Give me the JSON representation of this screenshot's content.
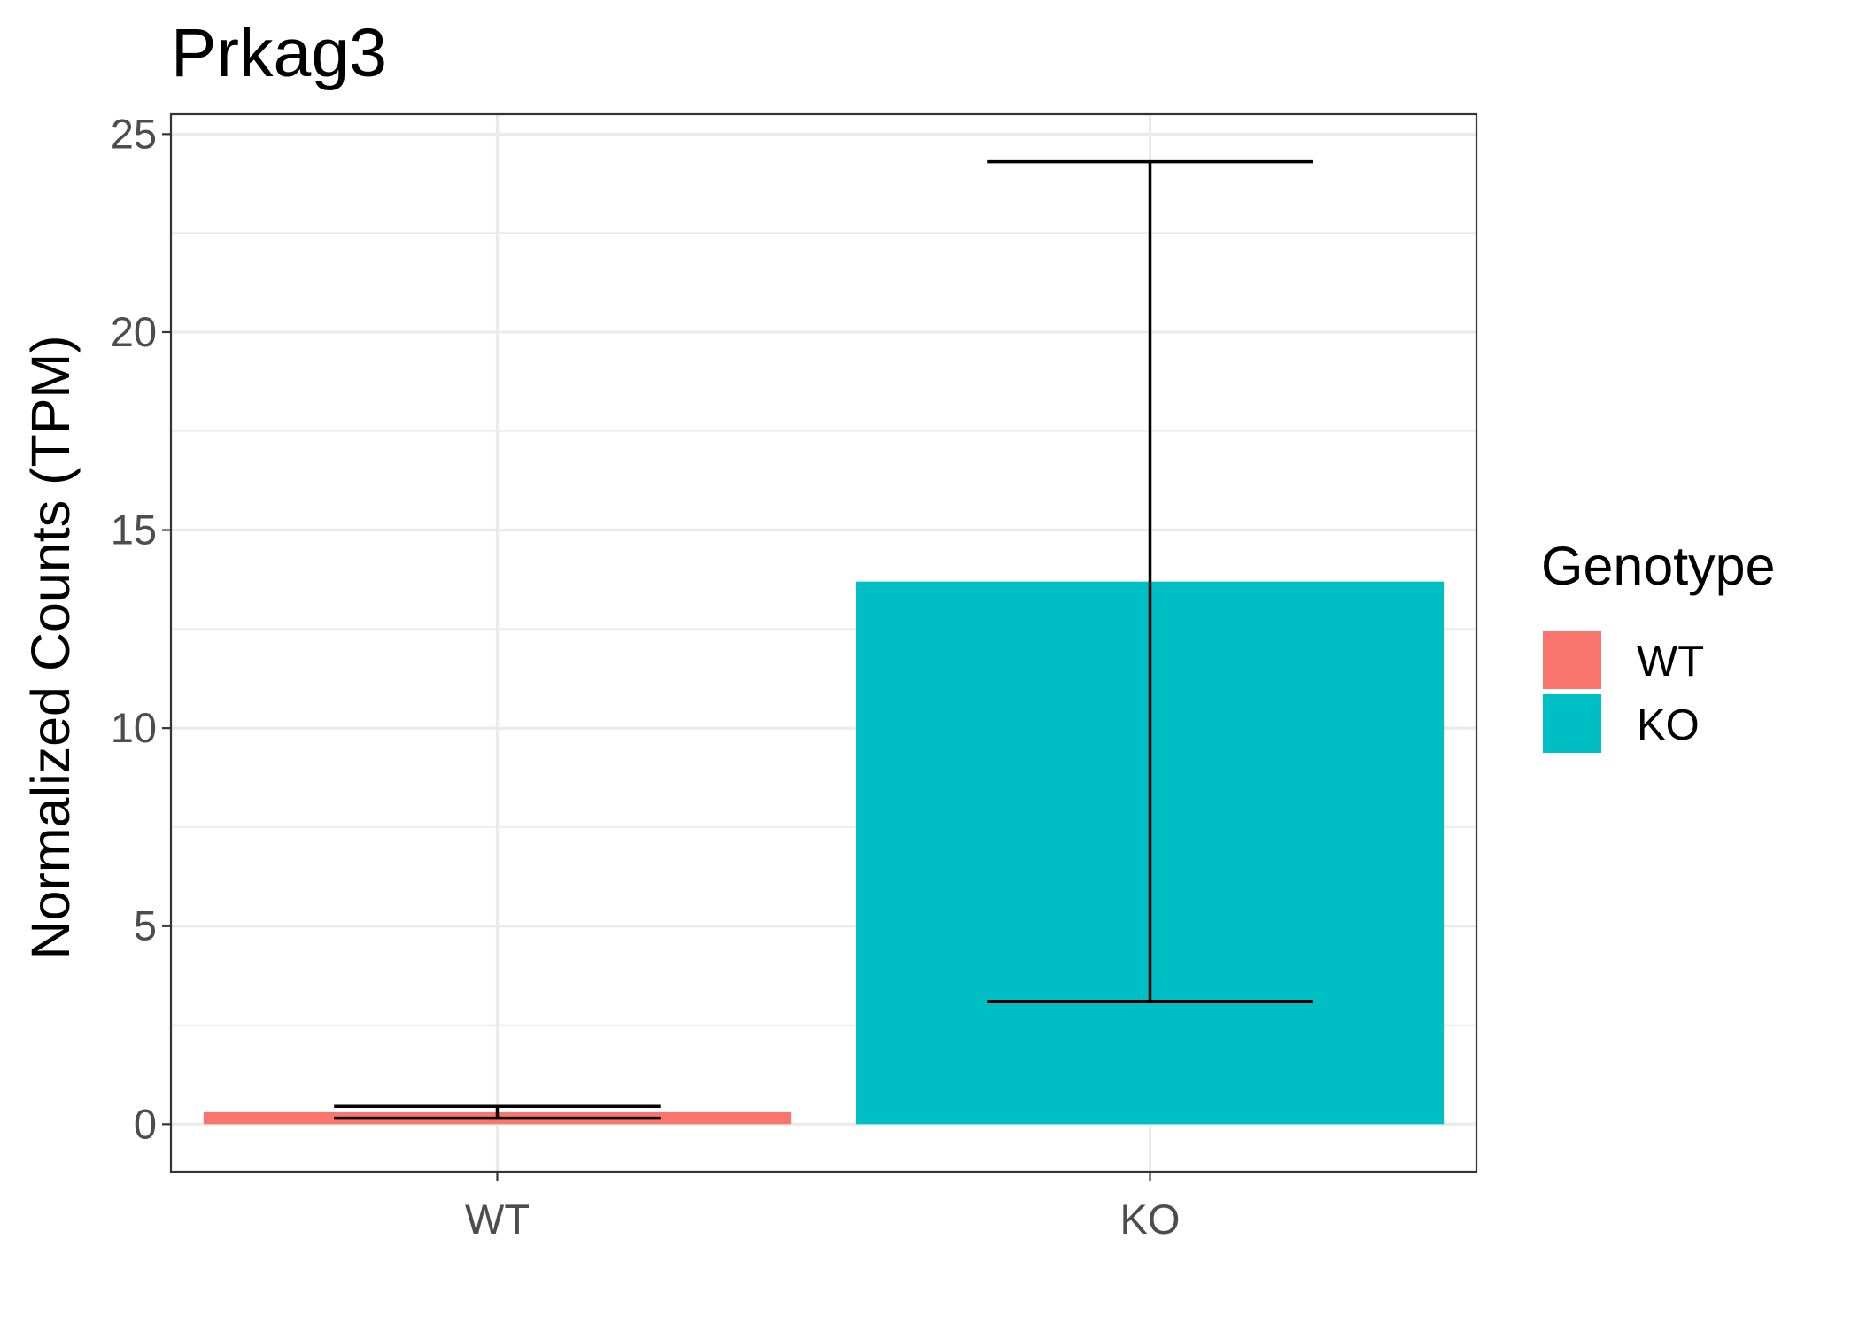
{
  "chart_data": {
    "type": "bar",
    "title": "Prkag3",
    "xlabel": "",
    "ylabel": "Normalized Counts (TPM)",
    "categories": [
      "WT",
      "KO"
    ],
    "values": [
      0.3,
      13.7
    ],
    "error_bars": [
      {
        "category": "WT",
        "lower": 0.15,
        "upper": 0.45
      },
      {
        "category": "KO",
        "lower": 3.1,
        "upper": 24.3
      }
    ],
    "colors": [
      "#F8766D",
      "#00BFC4"
    ],
    "ylim": [
      -1.2,
      25.5
    ],
    "yticks": [
      0,
      5,
      10,
      15,
      20,
      25
    ],
    "ytick_labels": [
      "0",
      "5",
      "10",
      "15",
      "20",
      "25"
    ],
    "grid": true,
    "legend": {
      "title": "Genotype",
      "position": "right",
      "entries": [
        {
          "label": "WT",
          "color": "#F8766D"
        },
        {
          "label": "KO",
          "color": "#00BFC4"
        }
      ]
    }
  }
}
